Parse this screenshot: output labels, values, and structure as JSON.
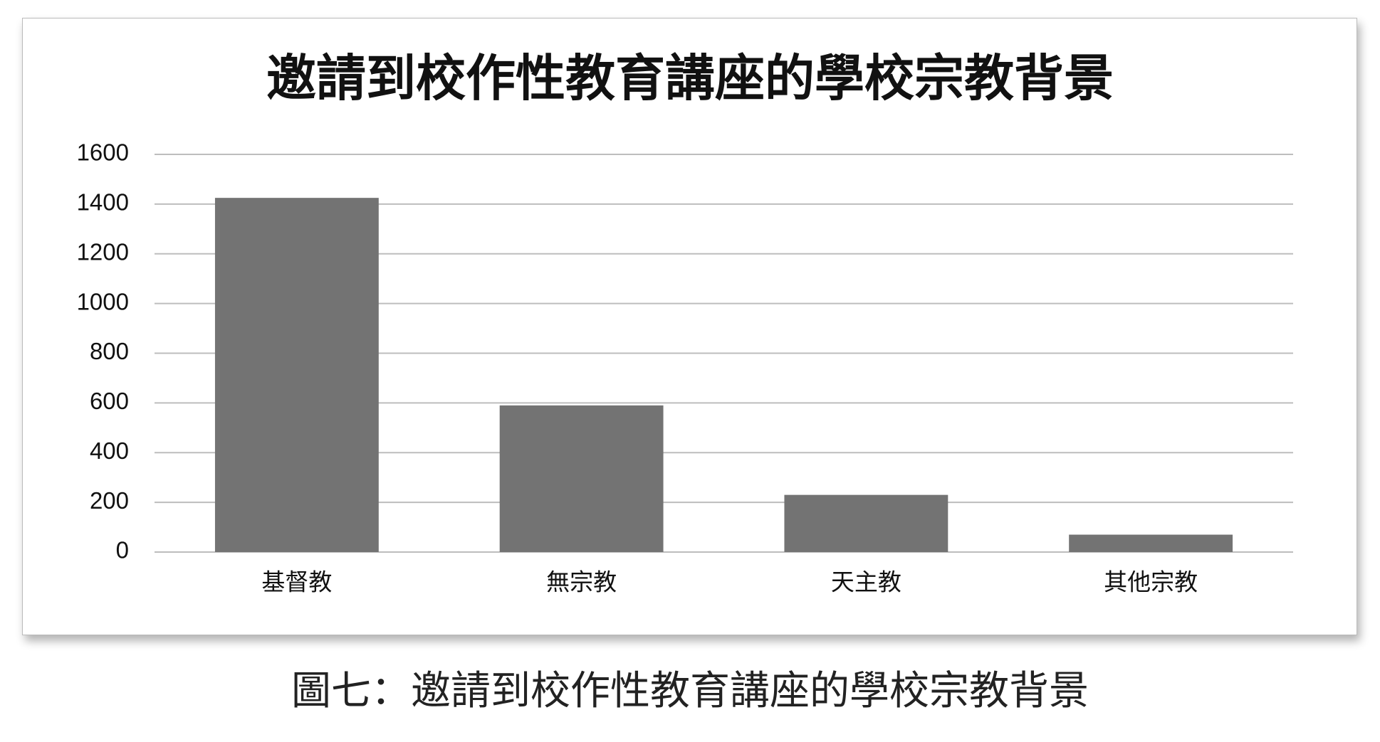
{
  "chart_data": {
    "type": "bar",
    "title": "邀請到校作性教育講座的學校宗教背景",
    "categories": [
      "基督教",
      "無宗教",
      "天主教",
      "其他宗教"
    ],
    "values": [
      1425,
      590,
      230,
      70
    ],
    "color": "#737373",
    "ylim": [
      0,
      1600
    ],
    "yticks": [
      0,
      200,
      400,
      600,
      800,
      1000,
      1200,
      1400,
      1600
    ],
    "grid": true
  },
  "caption": "圖七：邀請到校作性教育講座的學校宗教背景"
}
